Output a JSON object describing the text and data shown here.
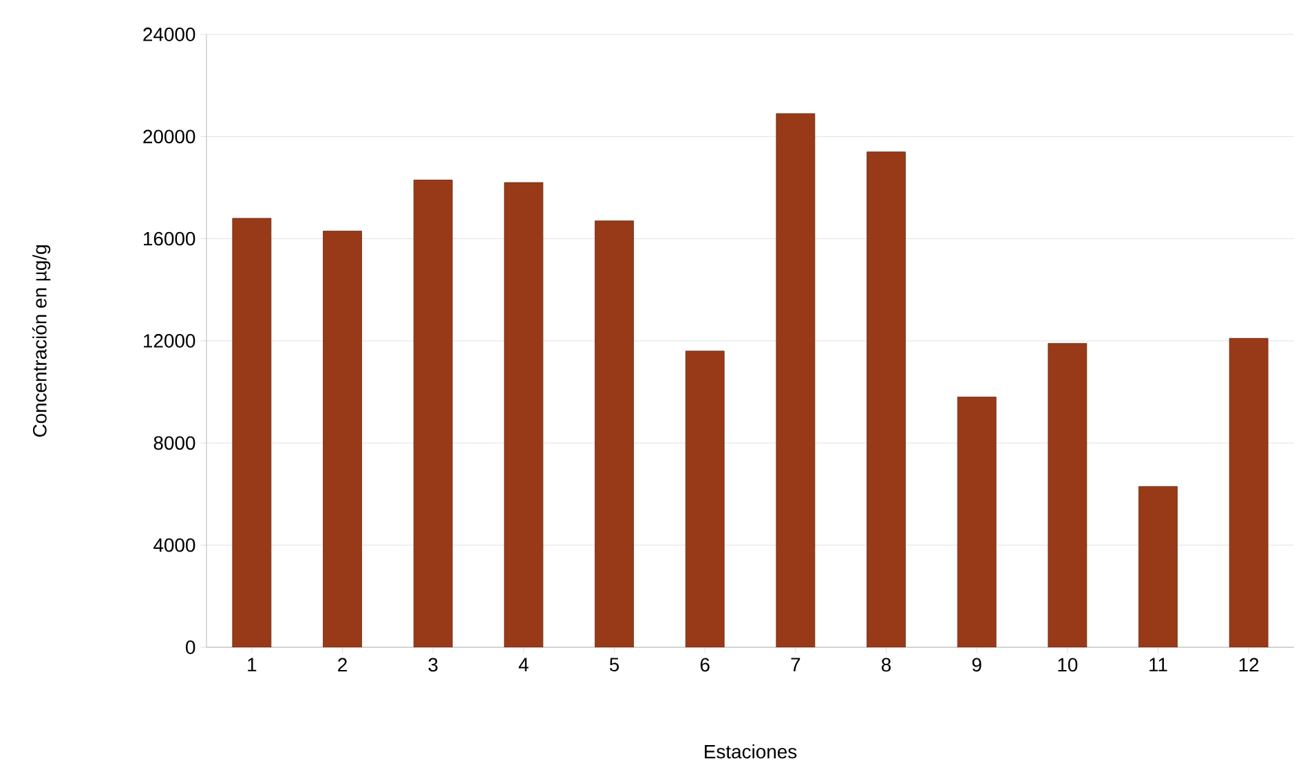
{
  "chart_data": {
    "type": "bar",
    "xlabel": "Estaciones",
    "ylabel": "Concentración en µg/g",
    "categories": [
      "1",
      "2",
      "3",
      "4",
      "5",
      "6",
      "7",
      "8",
      "9",
      "10",
      "11",
      "12"
    ],
    "values": [
      16800,
      16300,
      18300,
      18200,
      16700,
      11600,
      20900,
      19400,
      9800,
      11900,
      6300,
      12100
    ],
    "color": "#983a18",
    "ylim": [
      0,
      24000
    ],
    "yticks": [
      0,
      4000,
      8000,
      12000,
      16000,
      20000,
      24000
    ],
    "grid": "y"
  }
}
